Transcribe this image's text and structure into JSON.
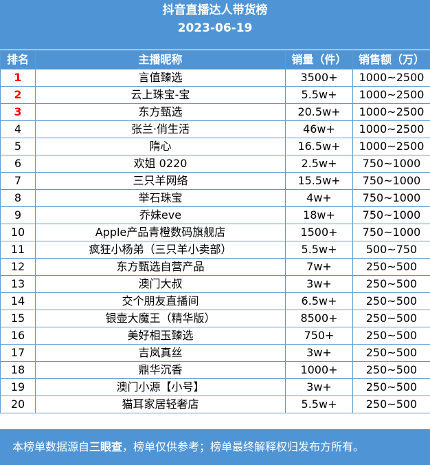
{
  "header": {
    "title": "抖音直播达人带货榜",
    "date": "2023-06-19"
  },
  "table": {
    "columns": [
      "排名",
      "主播昵称",
      "销量（件）",
      "销售额（万）"
    ],
    "rows": [
      {
        "rank": "1",
        "name": "言值臻选",
        "sales": "3500+",
        "amount": "1000~2500"
      },
      {
        "rank": "2",
        "name": "云上珠宝-宝",
        "sales": "5.5w+",
        "amount": "1000~2500"
      },
      {
        "rank": "3",
        "name": "东方甄选",
        "sales": "20.5w+",
        "amount": "1000~2500"
      },
      {
        "rank": "4",
        "name": "张兰·俏生活",
        "sales": "46w+",
        "amount": "1000~2500"
      },
      {
        "rank": "5",
        "name": "隋心",
        "sales": "16.5w+",
        "amount": "1000~2500"
      },
      {
        "rank": "6",
        "name": "欢姐 0220",
        "sales": "2.5w+",
        "amount": "750~1000"
      },
      {
        "rank": "7",
        "name": "三只羊网络",
        "sales": "15.5w+",
        "amount": "750~1000"
      },
      {
        "rank": "8",
        "name": "举石珠宝",
        "sales": "4w+",
        "amount": "750~1000"
      },
      {
        "rank": "9",
        "name": "乔妹eve",
        "sales": "18w+",
        "amount": "750~1000"
      },
      {
        "rank": "10",
        "name": "Apple产品青橙数码旗舰店",
        "sales": "1500+",
        "amount": "750~1000"
      },
      {
        "rank": "11",
        "name": "疯狂小杨弟（三只羊小卖部）",
        "sales": "5.5w+",
        "amount": "500~750"
      },
      {
        "rank": "12",
        "name": "东方甄选自营产品",
        "sales": "7w+",
        "amount": "250~500"
      },
      {
        "rank": "13",
        "name": "澳门大叔",
        "sales": "3w+",
        "amount": "250~500"
      },
      {
        "rank": "14",
        "name": "交个朋友直播间",
        "sales": "6.5w+",
        "amount": "250~500"
      },
      {
        "rank": "15",
        "name": "银壶大魔王（精华版）",
        "sales": "8500+",
        "amount": "250~500"
      },
      {
        "rank": "16",
        "name": "美好相玉臻选",
        "sales": "750+",
        "amount": "250~500"
      },
      {
        "rank": "17",
        "name": "吉岚真丝",
        "sales": "3w+",
        "amount": "250~500"
      },
      {
        "rank": "18",
        "name": "鼎华沉香",
        "sales": "1000+",
        "amount": "250~500"
      },
      {
        "rank": "19",
        "name": "澳门小源【小号】",
        "sales": "3w+",
        "amount": "250~500"
      },
      {
        "rank": "20",
        "name": "猫耳家居轻奢店",
        "sales": "5.5w+",
        "amount": "250~500"
      }
    ]
  },
  "footer": {
    "prefix": "本榜单数据源自",
    "source": "三眼查",
    "suffix": "，榜单仅供参考；榜单最终解释权归发布方所有。"
  },
  "colors": {
    "accent": "#4f95d6",
    "border": "#5b9bd5",
    "top_rank": "#ff0000"
  }
}
